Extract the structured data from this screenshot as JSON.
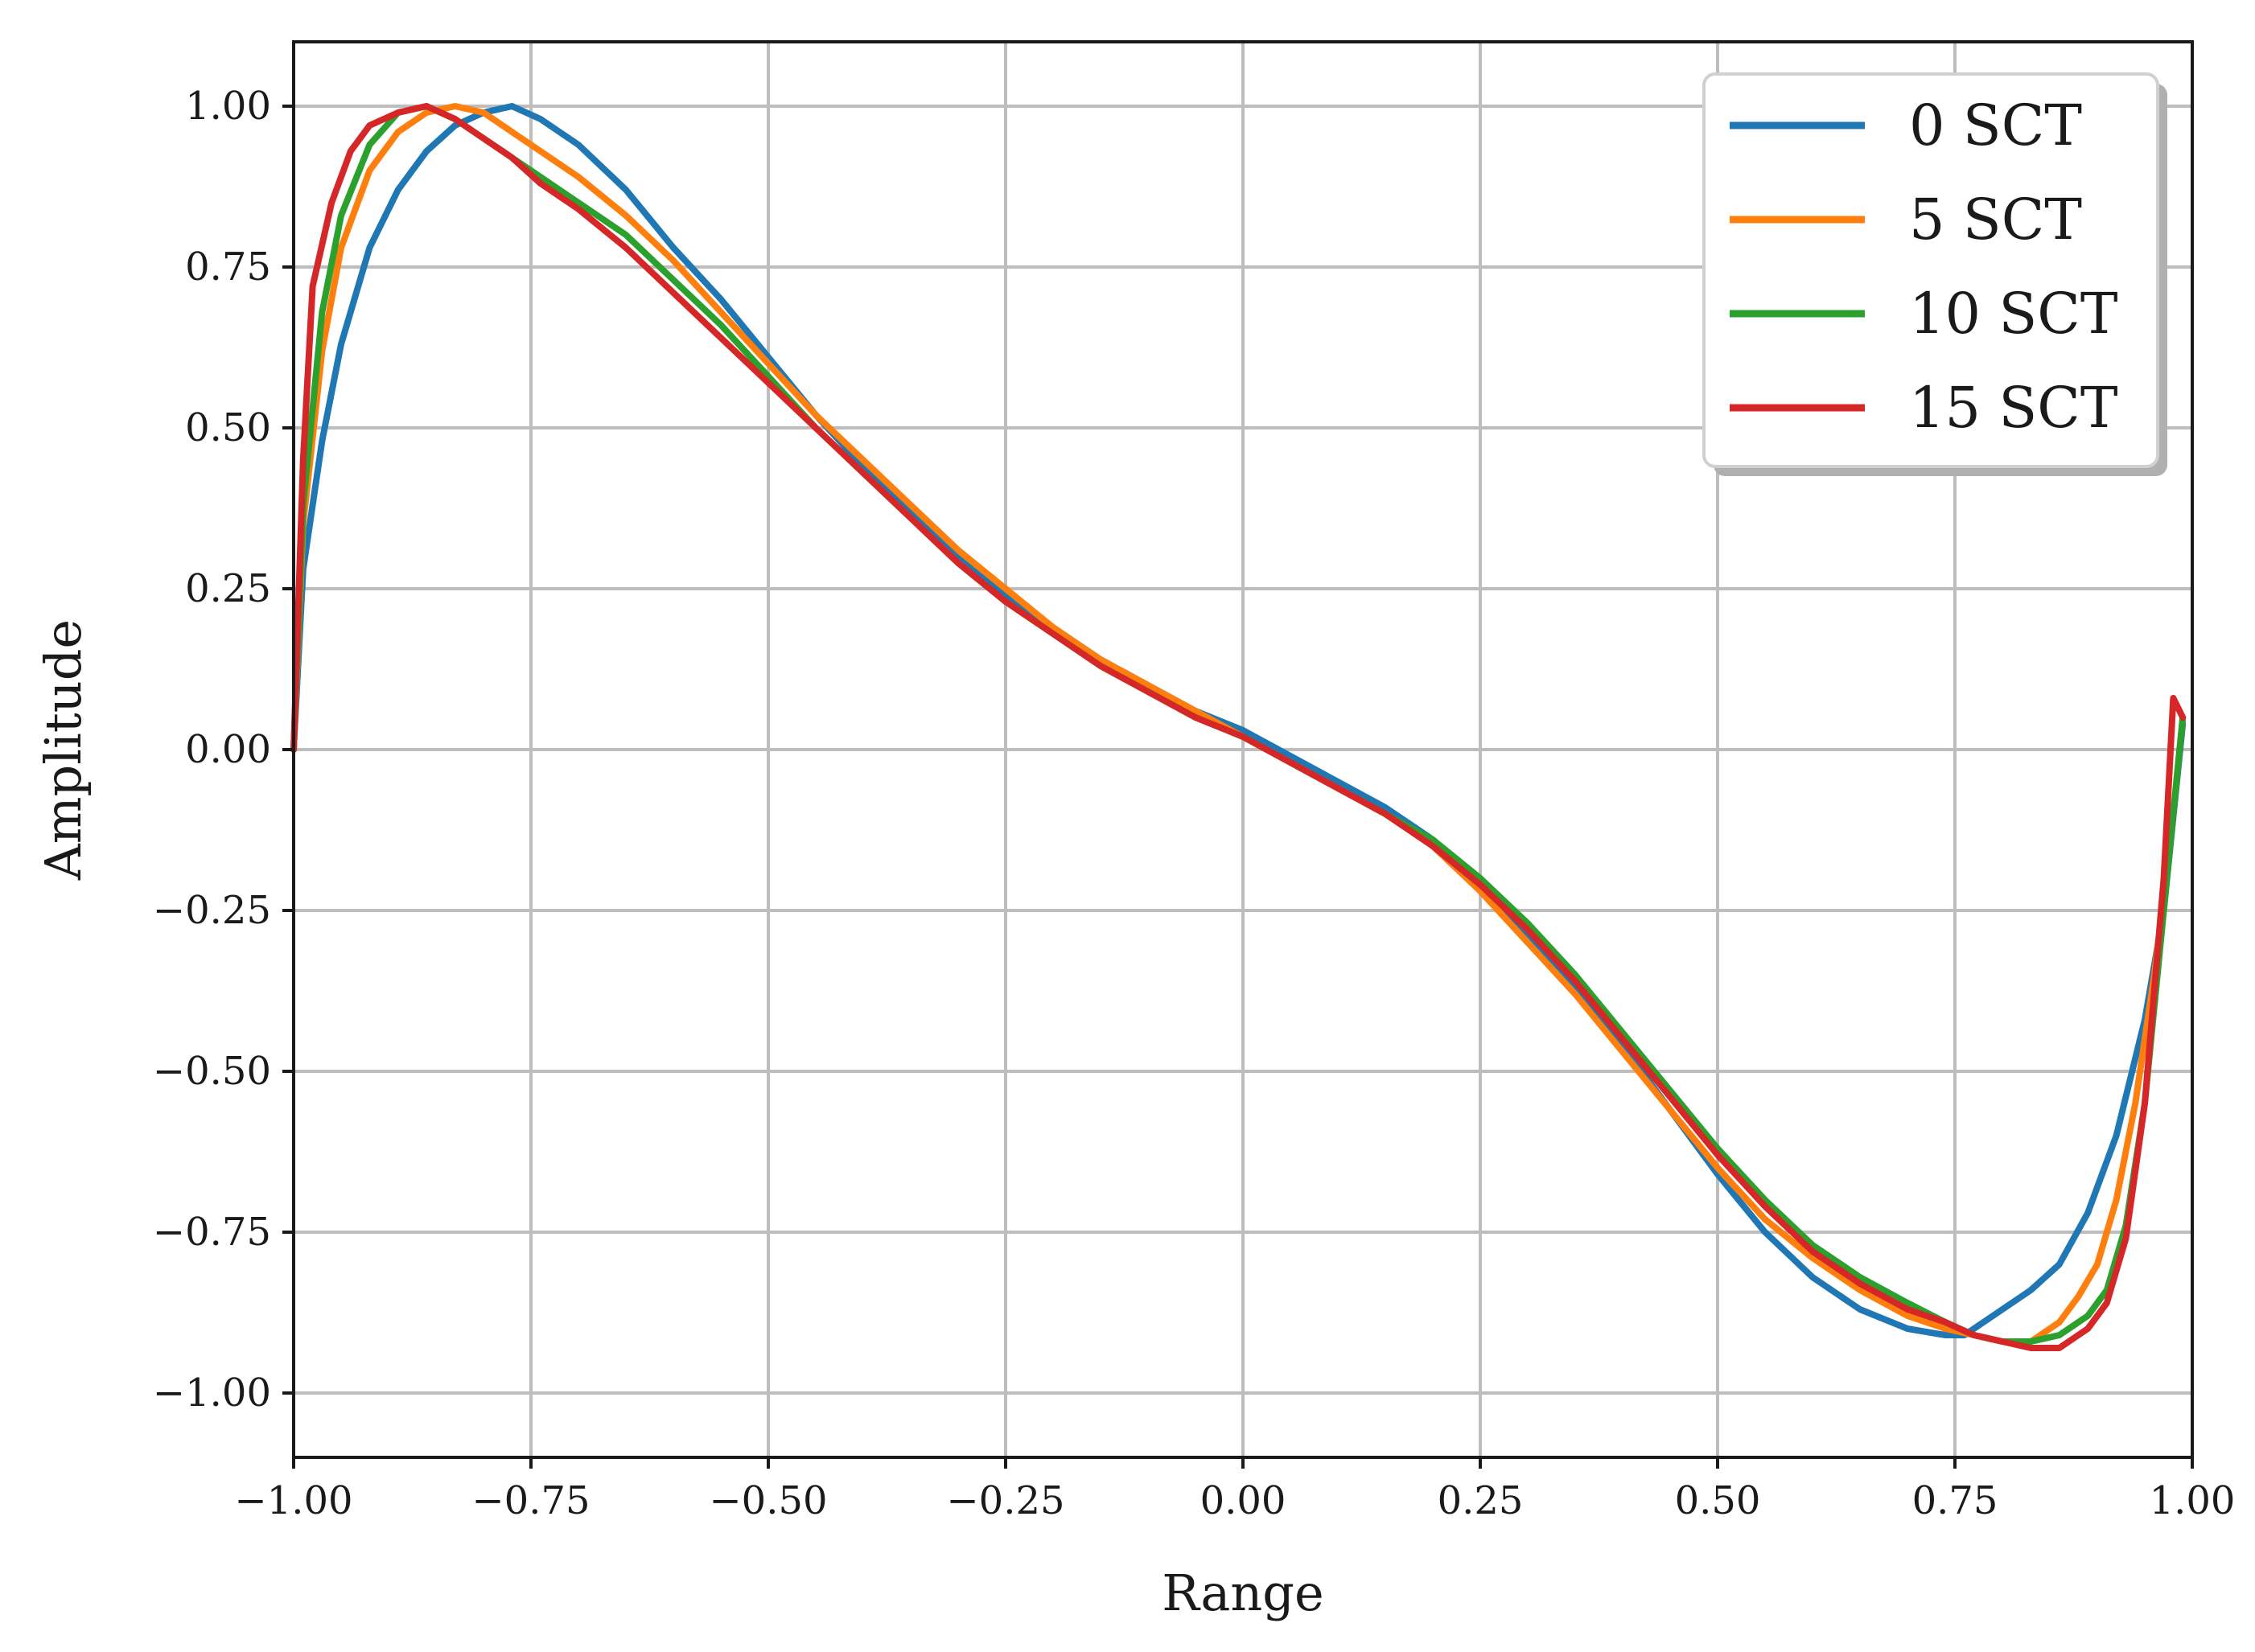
{
  "chart_data": {
    "type": "line",
    "title": "",
    "xlabel": "Range",
    "ylabel": "Amplitude",
    "xlim": [
      -1.0,
      1.0
    ],
    "ylim": [
      -1.1,
      1.1
    ],
    "xticks": [
      -1.0,
      -0.75,
      -0.5,
      -0.25,
      0.0,
      0.25,
      0.5,
      0.75,
      1.0
    ],
    "xtick_labels": [
      "−1.00",
      "−0.75",
      "−0.50",
      "−0.25",
      "0.00",
      "0.25",
      "0.50",
      "0.75",
      "1.00"
    ],
    "yticks": [
      1.0,
      0.75,
      0.5,
      0.25,
      0.0,
      -0.25,
      -0.5,
      -0.75,
      -1.0
    ],
    "ytick_labels": [
      "1.00",
      "0.75",
      "0.50",
      "0.25",
      "0.00",
      "−0.25",
      "−0.50",
      "−0.75",
      "−1.00"
    ],
    "grid": true,
    "legend_position": "top-right",
    "series": [
      {
        "name": "0 SCT",
        "color": "#1f77b4",
        "x": [
          -1.0,
          -0.99,
          -0.97,
          -0.95,
          -0.92,
          -0.89,
          -0.86,
          -0.83,
          -0.8,
          -0.77,
          -0.74,
          -0.7,
          -0.65,
          -0.6,
          -0.55,
          -0.5,
          -0.45,
          -0.4,
          -0.35,
          -0.3,
          -0.25,
          -0.2,
          -0.15,
          -0.1,
          -0.05,
          0.0,
          0.05,
          0.1,
          0.15,
          0.2,
          0.25,
          0.3,
          0.35,
          0.4,
          0.45,
          0.5,
          0.55,
          0.6,
          0.65,
          0.7,
          0.74,
          0.76,
          0.78,
          0.8,
          0.83,
          0.86,
          0.89,
          0.92,
          0.95,
          0.97,
          0.99
        ],
        "y": [
          0.0,
          0.28,
          0.48,
          0.63,
          0.78,
          0.87,
          0.93,
          0.97,
          0.99,
          1.0,
          0.98,
          0.94,
          0.87,
          0.78,
          0.7,
          0.61,
          0.52,
          0.44,
          0.37,
          0.3,
          0.24,
          0.19,
          0.14,
          0.1,
          0.06,
          0.03,
          -0.01,
          -0.05,
          -0.09,
          -0.14,
          -0.21,
          -0.29,
          -0.37,
          -0.46,
          -0.56,
          -0.66,
          -0.75,
          -0.82,
          -0.87,
          -0.9,
          -0.91,
          -0.91,
          -0.89,
          -0.87,
          -0.84,
          -0.8,
          -0.72,
          -0.6,
          -0.42,
          -0.25,
          0.04
        ]
      },
      {
        "name": "5 SCT",
        "color": "#ff7f0e",
        "x": [
          -1.0,
          -0.99,
          -0.97,
          -0.95,
          -0.92,
          -0.89,
          -0.86,
          -0.83,
          -0.8,
          -0.77,
          -0.74,
          -0.7,
          -0.65,
          -0.6,
          -0.55,
          -0.5,
          -0.45,
          -0.4,
          -0.35,
          -0.3,
          -0.25,
          -0.2,
          -0.15,
          -0.1,
          -0.05,
          0.0,
          0.05,
          0.1,
          0.15,
          0.2,
          0.25,
          0.3,
          0.35,
          0.4,
          0.45,
          0.5,
          0.55,
          0.6,
          0.65,
          0.7,
          0.74,
          0.77,
          0.8,
          0.83,
          0.86,
          0.88,
          0.9,
          0.92,
          0.94,
          0.96,
          0.98,
          0.99
        ],
        "y": [
          0.0,
          0.35,
          0.62,
          0.78,
          0.9,
          0.96,
          0.99,
          1.0,
          0.99,
          0.96,
          0.93,
          0.89,
          0.83,
          0.76,
          0.68,
          0.6,
          0.52,
          0.45,
          0.38,
          0.31,
          0.25,
          0.19,
          0.14,
          0.1,
          0.06,
          0.02,
          -0.02,
          -0.06,
          -0.1,
          -0.15,
          -0.22,
          -0.3,
          -0.38,
          -0.47,
          -0.56,
          -0.65,
          -0.73,
          -0.79,
          -0.84,
          -0.88,
          -0.9,
          -0.91,
          -0.92,
          -0.92,
          -0.89,
          -0.85,
          -0.8,
          -0.7,
          -0.55,
          -0.35,
          -0.1,
          0.05
        ]
      },
      {
        "name": "10 SCT",
        "color": "#2ca02c",
        "x": [
          -1.0,
          -0.99,
          -0.97,
          -0.95,
          -0.92,
          -0.89,
          -0.86,
          -0.83,
          -0.8,
          -0.77,
          -0.74,
          -0.7,
          -0.65,
          -0.6,
          -0.55,
          -0.5,
          -0.45,
          -0.4,
          -0.35,
          -0.3,
          -0.25,
          -0.2,
          -0.15,
          -0.1,
          -0.05,
          0.0,
          0.05,
          0.1,
          0.15,
          0.2,
          0.25,
          0.3,
          0.35,
          0.4,
          0.45,
          0.5,
          0.55,
          0.6,
          0.65,
          0.7,
          0.74,
          0.77,
          0.8,
          0.83,
          0.86,
          0.89,
          0.91,
          0.93,
          0.95,
          0.97,
          0.99
        ],
        "y": [
          0.0,
          0.38,
          0.68,
          0.83,
          0.94,
          0.99,
          1.0,
          0.98,
          0.95,
          0.92,
          0.89,
          0.85,
          0.8,
          0.73,
          0.66,
          0.58,
          0.5,
          0.43,
          0.36,
          0.29,
          0.23,
          0.18,
          0.13,
          0.09,
          0.05,
          0.02,
          -0.02,
          -0.06,
          -0.1,
          -0.14,
          -0.2,
          -0.27,
          -0.35,
          -0.44,
          -0.53,
          -0.62,
          -0.7,
          -0.77,
          -0.82,
          -0.86,
          -0.89,
          -0.91,
          -0.92,
          -0.92,
          -0.91,
          -0.88,
          -0.84,
          -0.74,
          -0.55,
          -0.25,
          0.05
        ]
      },
      {
        "name": "15 SCT",
        "color": "#d62728",
        "x": [
          -1.0,
          -0.99,
          -0.98,
          -0.96,
          -0.94,
          -0.92,
          -0.89,
          -0.86,
          -0.83,
          -0.8,
          -0.77,
          -0.74,
          -0.7,
          -0.65,
          -0.6,
          -0.55,
          -0.5,
          -0.45,
          -0.4,
          -0.35,
          -0.3,
          -0.25,
          -0.2,
          -0.15,
          -0.1,
          -0.05,
          0.0,
          0.05,
          0.1,
          0.15,
          0.2,
          0.25,
          0.3,
          0.35,
          0.4,
          0.45,
          0.5,
          0.55,
          0.6,
          0.65,
          0.7,
          0.74,
          0.77,
          0.8,
          0.83,
          0.86,
          0.89,
          0.91,
          0.93,
          0.95,
          0.97,
          0.98,
          0.99
        ],
        "y": [
          0.0,
          0.45,
          0.72,
          0.85,
          0.93,
          0.97,
          0.99,
          1.0,
          0.98,
          0.95,
          0.92,
          0.88,
          0.84,
          0.78,
          0.71,
          0.64,
          0.57,
          0.5,
          0.43,
          0.36,
          0.29,
          0.23,
          0.18,
          0.13,
          0.09,
          0.05,
          0.02,
          -0.02,
          -0.06,
          -0.1,
          -0.15,
          -0.21,
          -0.28,
          -0.36,
          -0.45,
          -0.54,
          -0.63,
          -0.71,
          -0.78,
          -0.83,
          -0.87,
          -0.89,
          -0.91,
          -0.92,
          -0.93,
          -0.93,
          -0.9,
          -0.86,
          -0.76,
          -0.55,
          -0.2,
          0.08,
          0.05
        ]
      }
    ]
  }
}
